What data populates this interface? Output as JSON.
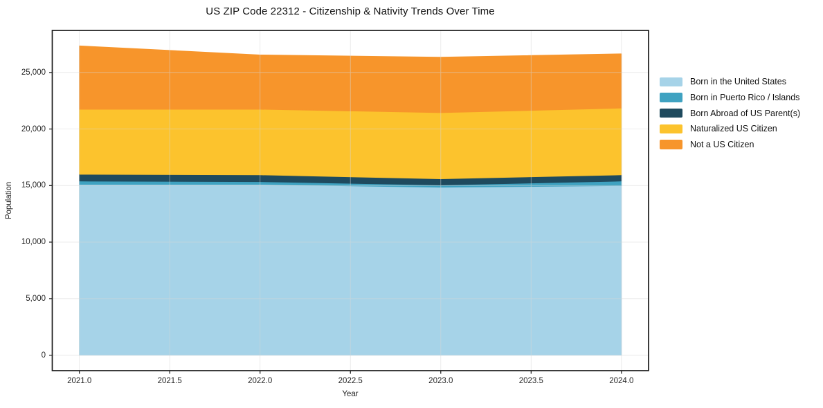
{
  "chart_data": {
    "type": "area",
    "stacked": true,
    "title": "US ZIP Code 22312 - Citizenship & Nativity Trends Over Time",
    "xlabel": "Year",
    "ylabel": "Population",
    "x": [
      2021,
      2022,
      2023,
      2024
    ],
    "series": [
      {
        "name": "Born in the United States",
        "color": "#a6d3e8",
        "values": [
          15100,
          15100,
          14850,
          15000
        ]
      },
      {
        "name": "Born in Puerto Rico / Islands",
        "color": "#3fa2c1",
        "values": [
          300,
          250,
          200,
          400
        ]
      },
      {
        "name": "Born Abroad of US Parent(s)",
        "color": "#1f4a5e",
        "values": [
          600,
          600,
          550,
          550
        ]
      },
      {
        "name": "Naturalized US Citizen",
        "color": "#fcc32d",
        "values": [
          5750,
          5800,
          5850,
          5900
        ]
      },
      {
        "name": "Not a US Citizen",
        "color": "#f7952b",
        "values": [
          5600,
          4800,
          4900,
          4800
        ]
      }
    ],
    "xlim": [
      2020.85,
      2024.15
    ],
    "ylim": [
      -1368,
      28718
    ],
    "xticks": [
      {
        "v": 2021.0,
        "label": "2021.0"
      },
      {
        "v": 2021.5,
        "label": "2021.5"
      },
      {
        "v": 2022.0,
        "label": "2022.0"
      },
      {
        "v": 2022.5,
        "label": "2022.5"
      },
      {
        "v": 2023.0,
        "label": "2023.0"
      },
      {
        "v": 2023.5,
        "label": "2023.5"
      },
      {
        "v": 2024.0,
        "label": "2024.0"
      }
    ],
    "yticks": [
      {
        "v": 0,
        "label": "0"
      },
      {
        "v": 5000,
        "label": "5,000"
      },
      {
        "v": 10000,
        "label": "10,000"
      },
      {
        "v": 15000,
        "label": "15,000"
      },
      {
        "v": 20000,
        "label": "20,000"
      },
      {
        "v": 25000,
        "label": "25,000"
      }
    ],
    "grid": true,
    "legend_position": "right-outside"
  },
  "colors": {
    "axis": "#1a1a1a",
    "grid": "#d7d7d7",
    "background": "#ffffff"
  }
}
